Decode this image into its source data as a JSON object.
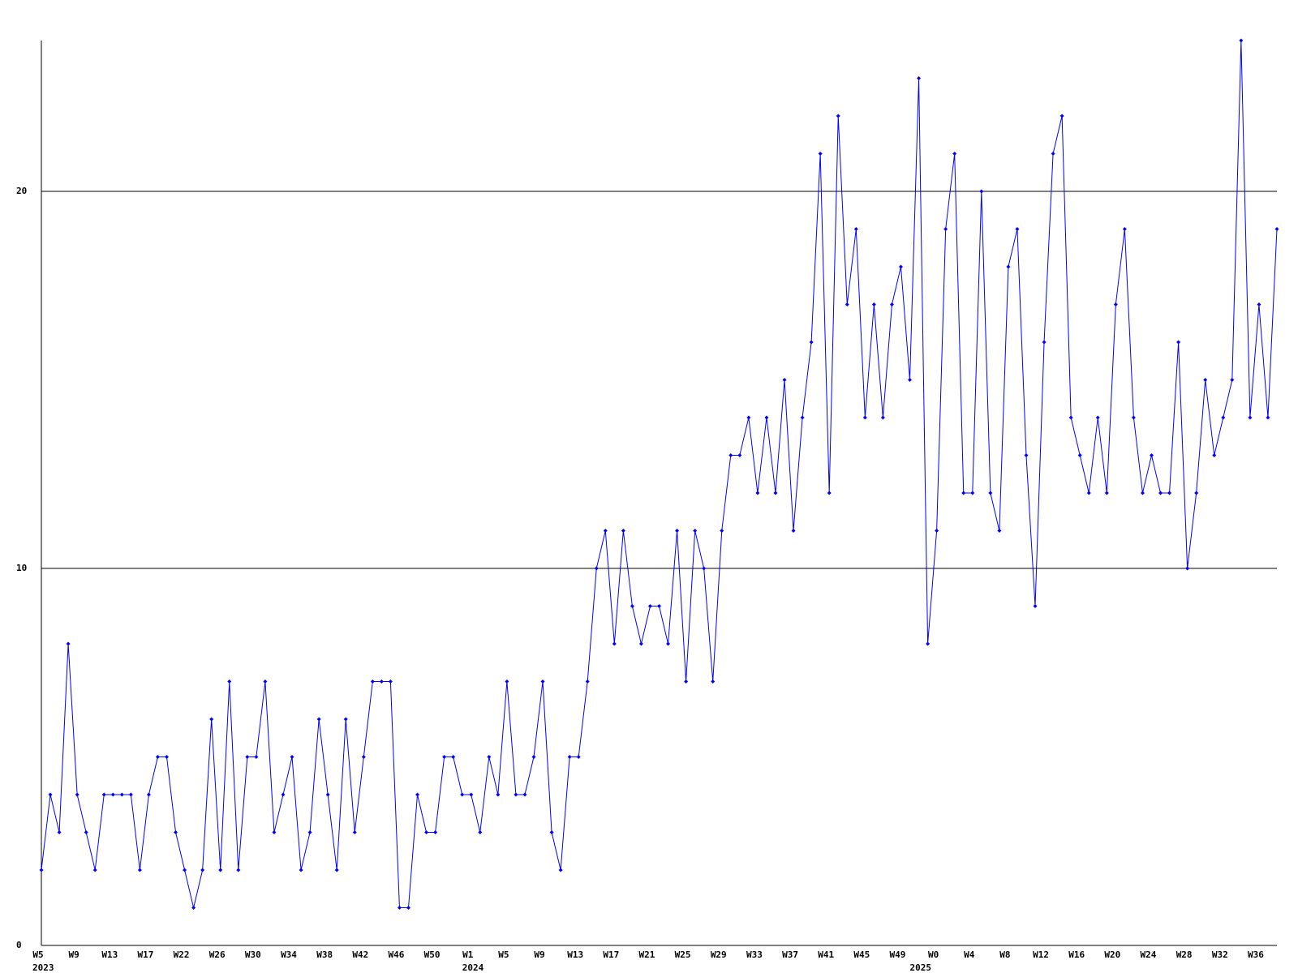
{
  "chart_data": {
    "type": "line",
    "categories": [
      "W5",
      null,
      null,
      null,
      "W9",
      null,
      null,
      null,
      "W13",
      null,
      null,
      null,
      "W17",
      null,
      null,
      null,
      "W22",
      null,
      null,
      null,
      "W26",
      null,
      null,
      null,
      "W30",
      null,
      null,
      null,
      "W34",
      null,
      null,
      null,
      "W38",
      null,
      null,
      null,
      "W42",
      null,
      null,
      null,
      "W46",
      null,
      null,
      null,
      "W50",
      null,
      null,
      null,
      "W1",
      null,
      null,
      null,
      "W5",
      null,
      null,
      null,
      "W9",
      null,
      null,
      null,
      "W13",
      null,
      null,
      null,
      "W17",
      null,
      null,
      null,
      "W21",
      null,
      null,
      null,
      "W25",
      null,
      null,
      null,
      "W29",
      null,
      null,
      null,
      "W33",
      null,
      null,
      null,
      "W37",
      null,
      null,
      null,
      "W41",
      null,
      null,
      null,
      "W45",
      null,
      null,
      null,
      "W49",
      null,
      null,
      null,
      "W0",
      null,
      null,
      null,
      "W4",
      null,
      null,
      null,
      "W8",
      null,
      null,
      null,
      "W12",
      null,
      null,
      null,
      "W16",
      null,
      null,
      null,
      "W20",
      null,
      null,
      null,
      "W24",
      null,
      null,
      null,
      "W28",
      null,
      null,
      null,
      "W32",
      null,
      null,
      null,
      "W36",
      null,
      null
    ],
    "category_years": [
      "2023",
      null,
      null,
      null,
      null,
      null,
      null,
      null,
      null,
      null,
      null,
      null,
      null,
      null,
      null,
      null,
      null,
      null,
      null,
      null,
      null,
      null,
      null,
      null,
      null,
      null,
      null,
      null,
      null,
      null,
      null,
      null,
      null,
      null,
      null,
      null,
      null,
      null,
      null,
      null,
      null,
      null,
      null,
      null,
      null,
      null,
      null,
      null,
      "2024",
      null,
      null,
      null,
      null,
      null,
      null,
      null,
      null,
      null,
      null,
      null,
      null,
      null,
      null,
      null,
      null,
      null,
      null,
      null,
      null,
      null,
      null,
      null,
      null,
      null,
      null,
      null,
      null,
      null,
      null,
      null,
      null,
      null,
      null,
      null,
      null,
      null,
      null,
      null,
      null,
      null,
      null,
      null,
      null,
      null,
      null,
      null,
      null,
      null,
      "2025",
      null,
      null,
      null,
      null,
      null,
      null,
      null,
      null,
      null,
      null,
      null,
      null,
      null,
      null,
      null,
      null,
      null,
      null,
      null,
      null,
      null,
      null,
      null,
      null,
      null,
      null,
      null,
      null,
      null,
      null,
      null,
      null,
      null,
      null,
      null,
      null,
      null,
      null
    ],
    "series": [
      {
        "color": "#0000ff",
        "values": [
          2,
          4,
          3,
          8,
          4,
          3,
          2,
          4,
          4,
          4,
          4,
          2,
          4,
          5,
          5,
          3,
          2,
          1,
          2,
          6,
          2,
          7,
          2,
          5,
          5,
          7,
          3,
          4,
          5,
          2,
          3,
          6,
          4,
          2,
          6,
          3,
          5,
          7,
          7,
          7,
          1,
          1,
          4,
          3,
          3,
          5,
          5,
          4,
          4,
          3,
          5,
          4,
          7,
          4,
          4,
          5,
          7,
          3,
          2,
          5,
          5,
          7,
          10,
          11,
          8,
          11,
          9,
          8,
          9,
          9,
          8,
          11,
          7,
          11,
          10,
          7,
          11,
          13,
          13,
          14,
          12,
          14,
          12,
          15,
          11,
          14,
          16,
          21,
          12,
          22,
          17,
          19,
          14,
          17,
          14,
          17,
          18,
          15,
          23,
          8,
          11,
          19,
          21,
          12,
          12,
          20,
          12,
          11,
          18,
          19,
          13,
          9,
          16,
          21,
          22,
          14,
          13,
          12,
          14,
          12,
          17,
          19,
          14,
          12,
          13,
          12,
          12,
          16,
          10,
          12,
          15,
          13,
          14,
          15,
          24,
          14,
          17,
          14,
          19
        ]
      }
    ],
    "ylim": [
      0,
      24
    ],
    "yticks": [
      0,
      10,
      20
    ],
    "grid": true
  }
}
